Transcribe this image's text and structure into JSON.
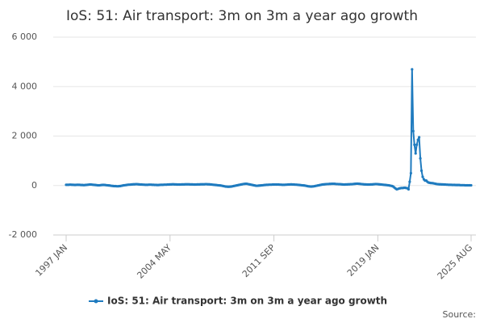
{
  "chart_data": {
    "type": "line",
    "title": "IoS: 51: Air transport: 3m on 3m a year ago growth",
    "source": "Source:",
    "categories": [
      "1997 JAN",
      null,
      null,
      null,
      null,
      null,
      null,
      null,
      null,
      null,
      null,
      null,
      null,
      null,
      null,
      null,
      null,
      null,
      null,
      null,
      null,
      null,
      null,
      null,
      null,
      null,
      null,
      null,
      null,
      null,
      null,
      null,
      null,
      null,
      null,
      null,
      null,
      null,
      null,
      null,
      null,
      null,
      null,
      null,
      null,
      null,
      null,
      null,
      null,
      null,
      null,
      null,
      null,
      null,
      null,
      null,
      null,
      null,
      null,
      null,
      null,
      null,
      null,
      null,
      null,
      null,
      null,
      null,
      null,
      null,
      null,
      null,
      null,
      null,
      null,
      null,
      null,
      null,
      null,
      null,
      null,
      null,
      null,
      null,
      null,
      null,
      null,
      null,
      "2004 MAY",
      null,
      null,
      null,
      null,
      null,
      null,
      null,
      null,
      null,
      null,
      null,
      null,
      null,
      null,
      null,
      null,
      null,
      null,
      null,
      null,
      null,
      null,
      null,
      null,
      null,
      null,
      null,
      null,
      null,
      null,
      null,
      null,
      null,
      null,
      null,
      null,
      null,
      null,
      null,
      null,
      null,
      null,
      null,
      null,
      null,
      null,
      null,
      null,
      null,
      null,
      null,
      null,
      null,
      null,
      null,
      null,
      null,
      null,
      null,
      null,
      null,
      null,
      null,
      null,
      null,
      null,
      null,
      null,
      null,
      null,
      null,
      null,
      null,
      null,
      null,
      null,
      null,
      null,
      null,
      null,
      null,
      null,
      null,
      null,
      null,
      null,
      null,
      "2011 SEP",
      null,
      null,
      null,
      null,
      null,
      null,
      null,
      null,
      null,
      null,
      null,
      null,
      null,
      null,
      null,
      null,
      null,
      null,
      null,
      null,
      null,
      null,
      null,
      null,
      null,
      null,
      null,
      null,
      null,
      null,
      null,
      null,
      null,
      null,
      null,
      null,
      null,
      null,
      null,
      null,
      null,
      null,
      null,
      null,
      null,
      null,
      null,
      null,
      null,
      null,
      null,
      null,
      null,
      null,
      null,
      null,
      null,
      null,
      null,
      null,
      null,
      null,
      null,
      null,
      null,
      null,
      null,
      null,
      null,
      null,
      null,
      null,
      null,
      null,
      null,
      null,
      null,
      null,
      null,
      null,
      null,
      null,
      null,
      null,
      null,
      null,
      null,
      "2019 JAN",
      null,
      null,
      null,
      null,
      null,
      null,
      null,
      null,
      null,
      null,
      null,
      null,
      null,
      null,
      null,
      null,
      null,
      null,
      null,
      null,
      null,
      null,
      null,
      null,
      null,
      null,
      null,
      null,
      null,
      null,
      null,
      null,
      null,
      null,
      null,
      null,
      null,
      null,
      null,
      null,
      null,
      null,
      null,
      null,
      null,
      null,
      null,
      null,
      null,
      null,
      null,
      null,
      null,
      null,
      null,
      null,
      null,
      null,
      null,
      null,
      null,
      null,
      null,
      null,
      null,
      null,
      null,
      null,
      null,
      null,
      null,
      null,
      null,
      null,
      null,
      null,
      null,
      null,
      "2025 AUG"
    ],
    "series": [
      {
        "name": "IoS: 51: Air transport: 3m on 3m a year ago growth",
        "color": "#1f7bbf",
        "values": [
          30,
          30,
          30,
          35,
          35,
          30,
          30,
          25,
          25,
          30,
          30,
          30,
          25,
          20,
          20,
          15,
          20,
          25,
          30,
          35,
          40,
          40,
          35,
          30,
          25,
          20,
          15,
          10,
          10,
          15,
          20,
          25,
          25,
          20,
          15,
          10,
          5,
          0,
          -10,
          -15,
          -20,
          -25,
          -25,
          -30,
          -30,
          -25,
          -20,
          -10,
          0,
          10,
          15,
          20,
          30,
          35,
          35,
          40,
          45,
          50,
          50,
          55,
          55,
          50,
          45,
          40,
          40,
          35,
          35,
          30,
          30,
          30,
          35,
          35,
          35,
          30,
          30,
          25,
          25,
          20,
          20,
          25,
          30,
          30,
          30,
          35,
          35,
          35,
          40,
          40,
          45,
          45,
          50,
          50,
          45,
          45,
          40,
          40,
          40,
          40,
          45,
          45,
          45,
          50,
          50,
          50,
          50,
          45,
          45,
          45,
          40,
          40,
          40,
          45,
          45,
          45,
          50,
          50,
          50,
          50,
          55,
          55,
          50,
          50,
          45,
          40,
          35,
          30,
          25,
          20,
          15,
          10,
          5,
          0,
          -10,
          -20,
          -30,
          -40,
          -45,
          -50,
          -50,
          -45,
          -40,
          -30,
          -20,
          -10,
          0,
          10,
          20,
          30,
          40,
          50,
          60,
          65,
          70,
          70,
          60,
          50,
          40,
          30,
          20,
          10,
          0,
          -10,
          -10,
          -5,
          0,
          5,
          10,
          15,
          20,
          25,
          30,
          30,
          35,
          35,
          35,
          40,
          40,
          40,
          40,
          40,
          40,
          35,
          35,
          30,
          30,
          30,
          35,
          35,
          40,
          40,
          45,
          45,
          40,
          40,
          35,
          35,
          30,
          25,
          20,
          15,
          10,
          5,
          0,
          -10,
          -20,
          -30,
          -35,
          -40,
          -40,
          -35,
          -30,
          -20,
          -10,
          0,
          10,
          20,
          30,
          40,
          45,
          50,
          55,
          60,
          60,
          65,
          65,
          70,
          70,
          70,
          65,
          60,
          60,
          55,
          55,
          50,
          45,
          40,
          40,
          45,
          45,
          50,
          50,
          55,
          55,
          60,
          65,
          70,
          75,
          75,
          70,
          65,
          60,
          55,
          50,
          45,
          45,
          40,
          40,
          40,
          45,
          45,
          50,
          55,
          60,
          60,
          55,
          50,
          45,
          40,
          35,
          30,
          25,
          20,
          15,
          10,
          0,
          -10,
          -20,
          -40,
          -80,
          -120,
          -150,
          -140,
          -120,
          -110,
          -100,
          -100,
          -95,
          -90,
          -100,
          -110,
          -150,
          150,
          500,
          4700,
          2200,
          1650,
          1300,
          1650,
          1850,
          1950,
          1100,
          600,
          350,
          250,
          200,
          200,
          150,
          120,
          110,
          100,
          100,
          90,
          80,
          70,
          60,
          55,
          50,
          50,
          45,
          45,
          40,
          40,
          35,
          35,
          30,
          30,
          30,
          25,
          25,
          25,
          20,
          20,
          20,
          20,
          15,
          15,
          15,
          15,
          10,
          10,
          10,
          10,
          10,
          10
        ]
      }
    ],
    "ylim": [
      -2000,
      6000
    ],
    "yticks": [
      {
        "value": -2000,
        "label": "-2 000"
      },
      0,
      {
        "value": 2000,
        "label": "2 000"
      },
      {
        "value": 4000,
        "label": "4 000"
      },
      {
        "value": 6000,
        "label": "6 000"
      }
    ],
    "grid": true
  }
}
